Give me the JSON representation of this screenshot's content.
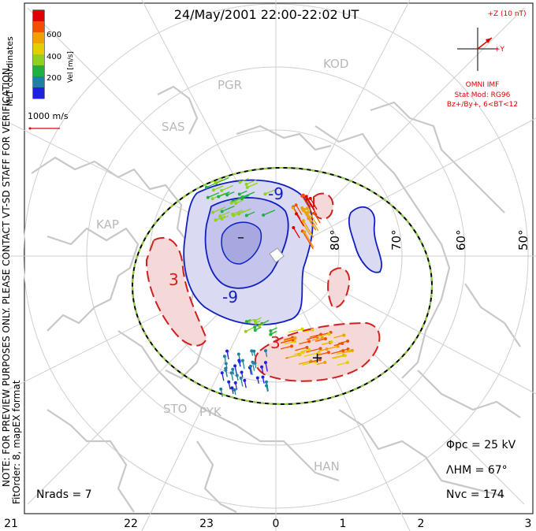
{
  "chart_data": {
    "type": "polar convection map",
    "title": "24/May/2001 22:00-22:02 UT",
    "coordinates_label": "MLT coordinates",
    "notice_line1": "NOTE: FOR PREVIEW PURPOSES ONLY. PLEASE CONTACT VT-SD STAFF FOR VERIFICATION.",
    "notice_line2": "FitOrder: 8, mapEX format",
    "colorbar": {
      "label": "Vel [m/s]",
      "ticks": [
        "600",
        "400",
        "200"
      ],
      "range": [
        0,
        800
      ],
      "colors": [
        "#e00000",
        "#f05000",
        "#f0a000",
        "#e0d000",
        "#90d020",
        "#20b040",
        "#2080a0",
        "#2020e0"
      ]
    },
    "scale_vector_label": "1000 m/s",
    "imf": {
      "bz_label": "+Z (10 nT)",
      "by_label": "+Y",
      "source": "OMNI IMF",
      "model_line1": "Stat Mod: RG96",
      "model_line2": "Bz+/By+, 6<BT<12"
    },
    "stats": {
      "phi_pc": "Φpc = 25 kV",
      "lambda_hm": "ΛHM = 67°",
      "n_vc": "Nvc = 174",
      "n_rads": "Nrads = 7"
    },
    "mlt_ticks": [
      "21",
      "22",
      "23",
      "0",
      "1",
      "2",
      "3"
    ],
    "lat_labels": [
      "80°",
      "70°",
      "60°",
      "50°"
    ],
    "stations": [
      "KOD",
      "PGR",
      "SAS",
      "KAP",
      "STO",
      "PYK",
      "HAN"
    ],
    "contour_labels": {
      "neg_top": "-9",
      "neg_bottom": "-9",
      "neg_min": "–",
      "pos_left": "3",
      "pos_bottom": "3",
      "pos_max": "+"
    },
    "potential_colors": {
      "negative": "#b8b8e8",
      "positive": "#f0c8c8",
      "neg_line": "#1020c0",
      "pos_line": "#d02020"
    }
  }
}
